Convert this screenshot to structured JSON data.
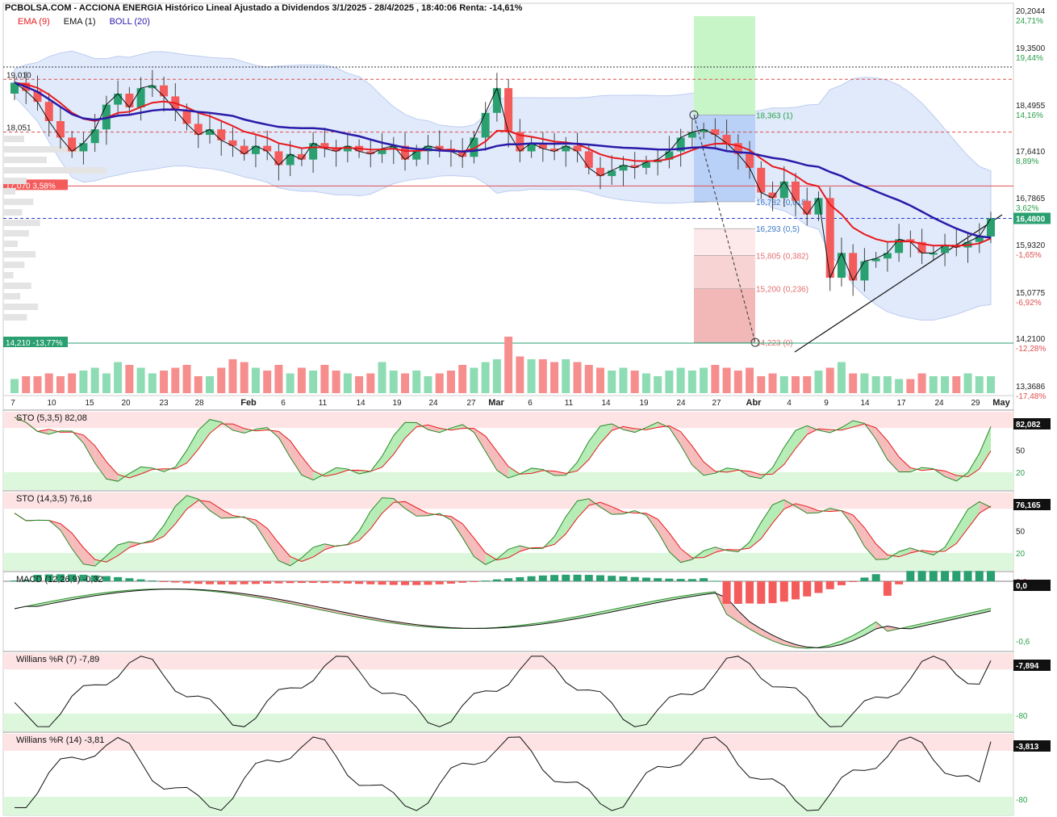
{
  "header": {
    "title": "PCBOLSA.COM - ACCIONA ENERGIA Histórico Lineal Ajustado a Dividendos 3/1/2025 - 28/4/2025 , 18:40:06 Renta: -14,61%",
    "legend": [
      {
        "label": "EMA (9)",
        "color": "#e8191e"
      },
      {
        "label": "EMA (1)",
        "color": "#111111"
      },
      {
        "label": "BOLL (20)",
        "color": "#2a1aa8"
      }
    ]
  },
  "colors": {
    "up": "#2aa070",
    "down": "#f45b5b",
    "ema9": "#e8191e",
    "ema1": "#111111",
    "boll": "#2a1aa8",
    "band_fill": "#dde8fb",
    "vol_up": "#8edcb4",
    "vol_down": "#f78e8e",
    "zone_high": "#fde3e3",
    "zone_low": "#ddf7dd"
  },
  "chart_data": [
    {
      "type": "candlestick",
      "name": "price",
      "x_ticks": [
        "7",
        "10",
        "15",
        "20",
        "23",
        "28",
        "Feb",
        "6",
        "11",
        "14",
        "19",
        "24",
        "27",
        "Mar",
        "6",
        "11",
        "14",
        "19",
        "24",
        "27",
        "Abr",
        "4",
        "9",
        "14",
        "17",
        "24",
        "29",
        "May"
      ],
      "x_ticks_bold": [
        "Feb",
        "Mar",
        "Abr",
        "May"
      ],
      "y_ticks": [
        {
          "price": "20,2044",
          "pct": "24,71%"
        },
        {
          "price": "19,3500",
          "pct": "19,44%"
        },
        {
          "price": "18,4955",
          "pct": "14,16%"
        },
        {
          "price": "17,6410",
          "pct": "8,89%"
        },
        {
          "price": "16,7865",
          "pct": "3,62%"
        },
        {
          "price": "15,9320",
          "pct": "-1,65%"
        },
        {
          "price": "15,0775",
          "pct": "-6,92%"
        },
        {
          "price": "14,2100",
          "pct": "-12,28%"
        },
        {
          "price": "13,3686",
          "pct": "-17,48%"
        }
      ],
      "ylim": [
        13.3686,
        20.2044
      ],
      "last_price": "16,4800",
      "close": [
        18.95,
        18.8,
        18.6,
        18.25,
        17.95,
        17.7,
        17.85,
        18.1,
        18.55,
        18.75,
        18.5,
        18.85,
        18.9,
        18.7,
        18.45,
        18.2,
        18.0,
        18.1,
        17.9,
        17.8,
        17.65,
        17.8,
        17.7,
        17.45,
        17.65,
        17.55,
        17.85,
        17.75,
        17.7,
        17.8,
        17.7,
        17.65,
        17.75,
        17.8,
        17.55,
        17.7,
        17.8,
        17.75,
        17.7,
        17.6,
        17.95,
        18.4,
        18.85,
        18.05,
        17.7,
        17.85,
        17.75,
        17.7,
        17.8,
        17.7,
        17.4,
        17.25,
        17.35,
        17.45,
        17.4,
        17.5,
        17.55,
        17.7,
        17.95,
        18.05,
        18.1,
        18.0,
        17.85,
        17.65,
        17.4,
        16.95,
        16.85,
        17.15,
        16.8,
        16.55,
        16.85,
        15.4,
        15.85,
        15.35,
        15.7,
        15.75,
        15.85,
        16.1,
        16.05,
        15.85,
        15.85,
        16.0,
        15.95,
        16.05,
        16.15,
        16.48
      ],
      "open": [
        18.75,
        18.95,
        18.8,
        18.6,
        18.25,
        17.95,
        17.7,
        17.85,
        18.1,
        18.55,
        18.75,
        18.5,
        18.85,
        18.9,
        18.7,
        18.45,
        18.2,
        18.0,
        18.1,
        17.9,
        17.8,
        17.65,
        17.8,
        17.7,
        17.45,
        17.65,
        17.55,
        17.85,
        17.75,
        17.7,
        17.8,
        17.7,
        17.65,
        17.75,
        17.8,
        17.55,
        17.7,
        17.8,
        17.75,
        17.7,
        17.6,
        17.95,
        18.4,
        18.85,
        18.05,
        17.7,
        17.85,
        17.75,
        17.7,
        17.8,
        17.7,
        17.4,
        17.25,
        17.35,
        17.45,
        17.4,
        17.5,
        17.55,
        17.7,
        17.95,
        18.05,
        18.1,
        18.0,
        17.85,
        17.65,
        17.4,
        16.95,
        16.85,
        17.15,
        16.8,
        16.55,
        16.85,
        15.4,
        15.85,
        15.35,
        15.7,
        15.75,
        15.85,
        16.1,
        16.05,
        15.85,
        15.85,
        16.0,
        15.95,
        16.05,
        16.15
      ],
      "volume": [
        0.25,
        0.3,
        0.3,
        0.35,
        0.3,
        0.35,
        0.4,
        0.45,
        0.35,
        0.55,
        0.5,
        0.45,
        0.35,
        0.4,
        0.45,
        0.5,
        0.3,
        0.3,
        0.45,
        0.6,
        0.55,
        0.45,
        0.4,
        0.5,
        0.35,
        0.45,
        0.4,
        0.5,
        0.4,
        0.35,
        0.3,
        0.35,
        0.55,
        0.4,
        0.35,
        0.4,
        0.3,
        0.35,
        0.4,
        0.5,
        0.45,
        0.55,
        0.6,
        1.0,
        0.65,
        0.6,
        0.6,
        0.55,
        0.6,
        0.55,
        0.5,
        0.45,
        0.4,
        0.45,
        0.4,
        0.35,
        0.3,
        0.4,
        0.45,
        0.4,
        0.45,
        0.5,
        0.45,
        0.4,
        0.45,
        0.3,
        0.35,
        0.3,
        0.3,
        0.3,
        0.4,
        0.45,
        0.55,
        0.35,
        0.35,
        0.3,
        0.3,
        0.25,
        0.25,
        0.35,
        0.3,
        0.3,
        0.3,
        0.35,
        0.3,
        0.3
      ]
    },
    {
      "type": "annotations",
      "levels": [
        {
          "label": "19,010",
          "price": 19.01
        },
        {
          "label": "18,051",
          "price": 18.051
        },
        {
          "label": "17,070  3,58%",
          "price": 17.07
        },
        {
          "label": "14,210  -13,77%",
          "price": 14.21
        }
      ],
      "fib": [
        {
          "label": "18,363 (1)",
          "price": 18.363
        },
        {
          "label": "16,782 (0,618)",
          "price": 16.782
        },
        {
          "label": "16,293 (0,5)",
          "price": 16.293
        },
        {
          "label": "15,805 (0,382)",
          "price": 15.805
        },
        {
          "label": "15,200 (0,236)",
          "price": 15.2
        },
        {
          "label": "14,223 (0)",
          "price": 14.223
        }
      ]
    },
    {
      "type": "line",
      "name": "STO (5,3,5)",
      "title": "STO (5,3,5)   82,08",
      "last": "82,082",
      "y_ticks": [
        "50",
        "20"
      ],
      "ylim": [
        0,
        100
      ]
    },
    {
      "type": "line",
      "name": "STO (14,3,5)",
      "title": "STO (14,3,5)   76,16",
      "last": "76,165",
      "y_ticks": [
        "50",
        "20"
      ],
      "ylim": [
        0,
        100
      ]
    },
    {
      "type": "bar",
      "name": "MACD (12,26,9)",
      "title": "MACD (12,26,9)   -0,32",
      "last": "0,0",
      "y_ticks": [
        "0,0",
        "-0,6"
      ]
    },
    {
      "type": "line",
      "name": "Willians %R (7)",
      "title": "Willians %R (7)   -7,89",
      "last": "-7,894",
      "y_ticks": [
        "-20",
        "-80"
      ],
      "ylim": [
        -100,
        0
      ]
    },
    {
      "type": "line",
      "name": "Willians %R (14)",
      "title": "Willians %R (14)   -3,81",
      "last": "-3,813",
      "y_ticks": [
        "-20",
        "-80"
      ],
      "ylim": [
        -100,
        0
      ]
    }
  ]
}
